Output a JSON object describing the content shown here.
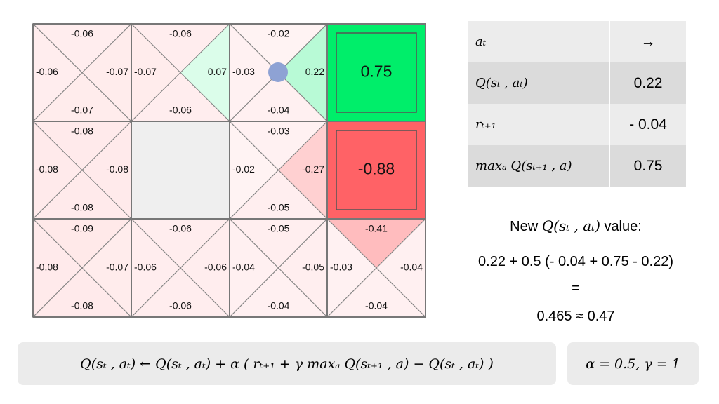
{
  "grid": {
    "rows": [
      [
        {
          "kind": "q",
          "up": -0.06,
          "left": -0.06,
          "right": -0.07,
          "down": -0.07
        },
        {
          "kind": "q",
          "up": -0.06,
          "left": -0.07,
          "right": 0.07,
          "down": -0.06
        },
        {
          "kind": "q",
          "up": -0.02,
          "left": -0.03,
          "right": 0.22,
          "down": -0.04
        },
        {
          "kind": "terminal",
          "value": 0.75,
          "color": "#00ee6a"
        }
      ],
      [
        {
          "kind": "q",
          "up": -0.08,
          "left": -0.08,
          "right": -0.08,
          "down": -0.08
        },
        {
          "kind": "wall",
          "color": "#efefef"
        },
        {
          "kind": "q",
          "up": -0.03,
          "left": -0.02,
          "right": -0.27,
          "down": -0.05
        },
        {
          "kind": "terminal",
          "value": -0.88,
          "color": "#ff6266"
        }
      ],
      [
        {
          "kind": "q",
          "up": -0.09,
          "left": -0.08,
          "right": -0.07,
          "down": -0.08
        },
        {
          "kind": "q",
          "up": -0.06,
          "left": -0.06,
          "right": -0.06,
          "down": -0.06
        },
        {
          "kind": "q",
          "up": -0.05,
          "left": -0.04,
          "right": -0.05,
          "down": -0.04
        },
        {
          "kind": "q",
          "up": -0.41,
          "left": -0.03,
          "right": -0.04,
          "down": -0.04
        }
      ]
    ]
  },
  "table": {
    "rows": [
      [
        "aₜ",
        "→"
      ],
      [
        "Q(sₜ , aₜ)",
        "0.22"
      ],
      [
        "rₜ₊₁",
        "- 0.04"
      ],
      [
        "maxₐ Q(sₜ₊₁ , a)",
        "0.75"
      ]
    ]
  },
  "calculation": {
    "heading_pre": "New",
    "heading_math": "Q(sₜ , aₜ)",
    "heading_post": "value:",
    "expression": "0.22 + 0.5 (- 0.04 + 0.75 - 0.22)",
    "equals": "=",
    "result": "0.465 ≈ 0.47"
  },
  "update_rule": "Q(sₜ , aₜ)  ← Q(sₜ , aₜ) + α ( rₜ₊₁ + γ maxₐ Q(sₜ₊₁ , a) − Q(sₜ , aₜ) )",
  "parameters": "α = 0.5,  γ = 1"
}
